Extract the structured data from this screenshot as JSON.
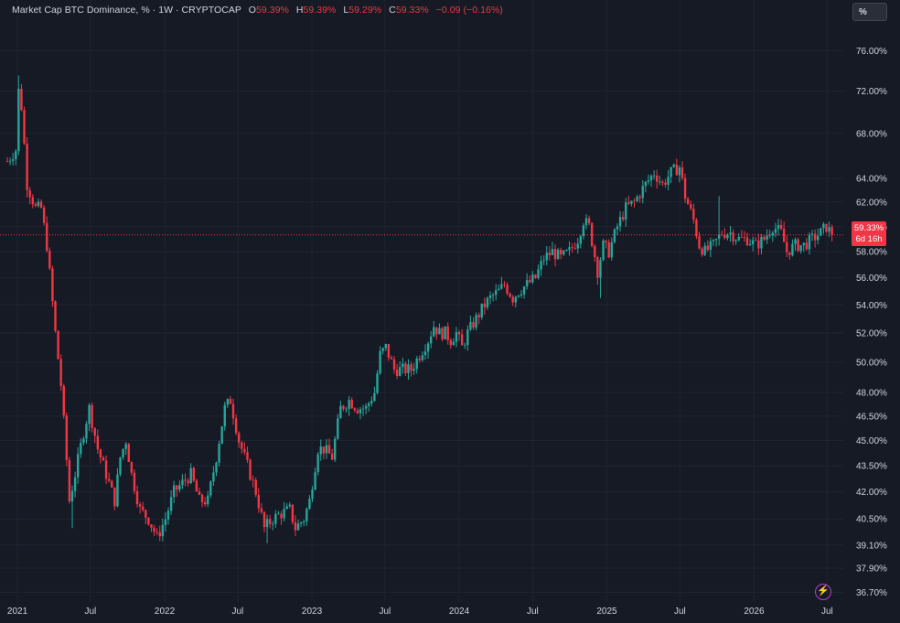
{
  "header": {
    "symbol": "Market Cap BTC Dominance, % · 1W · CRYPTOCAP",
    "open_key": "O",
    "open": "59.39%",
    "high_key": "H",
    "high": "59.39%",
    "low_key": "L",
    "low": "59.29%",
    "close_key": "C",
    "close": "59.33%",
    "change": "−0.09 (−0.16%)"
  },
  "toolbar": {
    "scale_label": "%"
  },
  "price_label": {
    "value": "59.33%",
    "countdown": "6d 16h"
  },
  "colors": {
    "background": "#161a25",
    "up": "#26a69a",
    "down": "#f23645",
    "grid": "#1f2433",
    "axis_text": "#d1d4dc"
  },
  "icons": {
    "lightning": "lightning-icon"
  },
  "chart_data": {
    "type": "candlestick",
    "title": "Market Cap BTC Dominance, %",
    "interval": "1W",
    "source": "CRYPTOCAP",
    "y_scale": "log",
    "ylim": [
      36.4,
      78.6
    ],
    "x_range": [
      "2020-12-07",
      "2026-08-10"
    ],
    "y_ticks": [
      76.0,
      72.0,
      68.0,
      64.0,
      62.0,
      60.0,
      58.0,
      56.0,
      54.0,
      52.0,
      50.0,
      48.0,
      46.5,
      45.0,
      43.5,
      42.0,
      40.5,
      39.1,
      37.9,
      36.7
    ],
    "y_tick_labels": [
      "76.00%",
      "72.00%",
      "68.00%",
      "64.00%",
      "62.00%",
      "60.00%",
      "58.00%",
      "56.00%",
      "54.00%",
      "52.00%",
      "50.00%",
      "48.00%",
      "46.50%",
      "45.00%",
      "43.50%",
      "42.00%",
      "40.50%",
      "39.10%",
      "37.90%",
      "36.70%"
    ],
    "x_ticks": [
      {
        "date": "2021-01-01",
        "label": "2021"
      },
      {
        "date": "2021-07-01",
        "label": "Jul"
      },
      {
        "date": "2022-01-01",
        "label": "2022"
      },
      {
        "date": "2022-07-01",
        "label": "Jul"
      },
      {
        "date": "2023-01-01",
        "label": "2023"
      },
      {
        "date": "2023-07-01",
        "label": "Jul"
      },
      {
        "date": "2024-01-01",
        "label": "2024"
      },
      {
        "date": "2024-07-01",
        "label": "Jul"
      },
      {
        "date": "2025-01-01",
        "label": "2025"
      },
      {
        "date": "2025-07-01",
        "label": "Jul"
      },
      {
        "date": "2026-01-01",
        "label": "2026"
      },
      {
        "date": "2026-07-01",
        "label": "Jul"
      }
    ],
    "last_price": 59.33,
    "close_anchors": [
      [
        "2020-12-07",
        65.5
      ],
      [
        "2020-12-28",
        66.5
      ],
      [
        "2021-01-04",
        72.0
      ],
      [
        "2021-01-11",
        70.5
      ],
      [
        "2021-01-25",
        63.5
      ],
      [
        "2021-02-15",
        61.5
      ],
      [
        "2021-03-01",
        61.5
      ],
      [
        "2021-03-15",
        58.5
      ],
      [
        "2021-04-05",
        52.0
      ],
      [
        "2021-04-19",
        48.5
      ],
      [
        "2021-05-10",
        41.5
      ],
      [
        "2021-05-24",
        43.0
      ],
      [
        "2021-06-14",
        45.5
      ],
      [
        "2021-06-28",
        47.0
      ],
      [
        "2021-07-19",
        44.5
      ],
      [
        "2021-08-09",
        43.0
      ],
      [
        "2021-08-30",
        41.5
      ],
      [
        "2021-09-13",
        44.0
      ],
      [
        "2021-09-27",
        45.0
      ],
      [
        "2021-10-11",
        43.0
      ],
      [
        "2021-11-01",
        41.0
      ],
      [
        "2021-11-22",
        40.5
      ],
      [
        "2021-12-13",
        39.5
      ],
      [
        "2022-01-03",
        40.5
      ],
      [
        "2022-01-24",
        42.0
      ],
      [
        "2022-02-14",
        42.5
      ],
      [
        "2022-03-07",
        43.0
      ],
      [
        "2022-03-28",
        41.5
      ],
      [
        "2022-04-18",
        41.5
      ],
      [
        "2022-05-09",
        44.0
      ],
      [
        "2022-05-30",
        47.0
      ],
      [
        "2022-06-13",
        47.5
      ],
      [
        "2022-07-04",
        45.0
      ],
      [
        "2022-07-25",
        43.5
      ],
      [
        "2022-08-15",
        42.0
      ],
      [
        "2022-09-05",
        40.0
      ],
      [
        "2022-09-26",
        40.5
      ],
      [
        "2022-10-17",
        40.8
      ],
      [
        "2022-11-07",
        41.0
      ],
      [
        "2022-11-21",
        40.0
      ],
      [
        "2022-12-12",
        40.5
      ],
      [
        "2022-12-26",
        41.5
      ],
      [
        "2023-01-16",
        44.5
      ],
      [
        "2023-01-30",
        44.5
      ],
      [
        "2023-02-20",
        44.0
      ],
      [
        "2023-03-13",
        47.0
      ],
      [
        "2023-04-03",
        47.5
      ],
      [
        "2023-04-24",
        47.0
      ],
      [
        "2023-05-15",
        47.0
      ],
      [
        "2023-06-05",
        48.0
      ],
      [
        "2023-06-19",
        50.5
      ],
      [
        "2023-07-03",
        51.0
      ],
      [
        "2023-07-24",
        49.5
      ],
      [
        "2023-08-14",
        49.5
      ],
      [
        "2023-09-04",
        49.5
      ],
      [
        "2023-09-25",
        50.5
      ],
      [
        "2023-10-16",
        51.5
      ],
      [
        "2023-10-30",
        52.5
      ],
      [
        "2023-11-13",
        52.0
      ],
      [
        "2023-11-27",
        52.0
      ],
      [
        "2023-12-11",
        51.5
      ],
      [
        "2023-12-25",
        52.0
      ],
      [
        "2024-01-08",
        51.0
      ],
      [
        "2024-01-22",
        52.0
      ],
      [
        "2024-02-12",
        53.0
      ],
      [
        "2024-03-04",
        54.0
      ],
      [
        "2024-03-18",
        54.5
      ],
      [
        "2024-04-08",
        55.0
      ],
      [
        "2024-04-22",
        55.5
      ],
      [
        "2024-05-13",
        54.5
      ],
      [
        "2024-05-27",
        55.0
      ],
      [
        "2024-06-17",
        55.5
      ],
      [
        "2024-07-08",
        56.0
      ],
      [
        "2024-07-29",
        57.5
      ],
      [
        "2024-08-19",
        58.0
      ],
      [
        "2024-09-09",
        57.5
      ],
      [
        "2024-09-30",
        58.0
      ],
      [
        "2024-10-21",
        59.0
      ],
      [
        "2024-11-04",
        60.5
      ],
      [
        "2024-11-18",
        60.0
      ],
      [
        "2024-12-09",
        56.5
      ],
      [
        "2024-12-23",
        58.5
      ],
      [
        "2025-01-06",
        58.0
      ],
      [
        "2025-01-27",
        60.0
      ],
      [
        "2025-02-17",
        61.5
      ],
      [
        "2025-03-10",
        62.0
      ],
      [
        "2025-04-07",
        63.5
      ],
      [
        "2025-04-28",
        64.5
      ],
      [
        "2025-05-19",
        63.5
      ],
      [
        "2025-06-09",
        64.5
      ],
      [
        "2025-06-30",
        65.0
      ],
      [
        "2025-07-14",
        62.5
      ],
      [
        "2025-08-04",
        60.5
      ],
      [
        "2025-08-18",
        58.5
      ],
      [
        "2025-09-01",
        58.0
      ],
      [
        "2025-09-22",
        58.5
      ],
      [
        "2025-10-13",
        59.5
      ],
      [
        "2025-11-03",
        59.5
      ],
      [
        "2025-11-24",
        59.0
      ],
      [
        "2025-12-15",
        59.0
      ],
      [
        "2026-01-05",
        58.5
      ],
      [
        "2026-01-26",
        59.0
      ],
      [
        "2026-02-16",
        60.0
      ],
      [
        "2026-03-09",
        59.5
      ],
      [
        "2026-03-23",
        58.0
      ],
      [
        "2026-04-13",
        58.5
      ],
      [
        "2026-05-04",
        58.5
      ],
      [
        "2026-05-25",
        59.0
      ],
      [
        "2026-06-15",
        59.5
      ],
      [
        "2026-06-29",
        60.0
      ],
      [
        "2026-07-13",
        59.33
      ]
    ],
    "notable_extremes": [
      {
        "date": "2021-01-04",
        "high": 73.5
      },
      {
        "date": "2021-05-17",
        "low": 40.0
      },
      {
        "date": "2022-09-12",
        "low": 39.2
      },
      {
        "date": "2024-12-16",
        "low": 54.5
      },
      {
        "date": "2025-07-07",
        "high": 65.5
      },
      {
        "date": "2025-10-06",
        "high": 62.5
      }
    ]
  }
}
